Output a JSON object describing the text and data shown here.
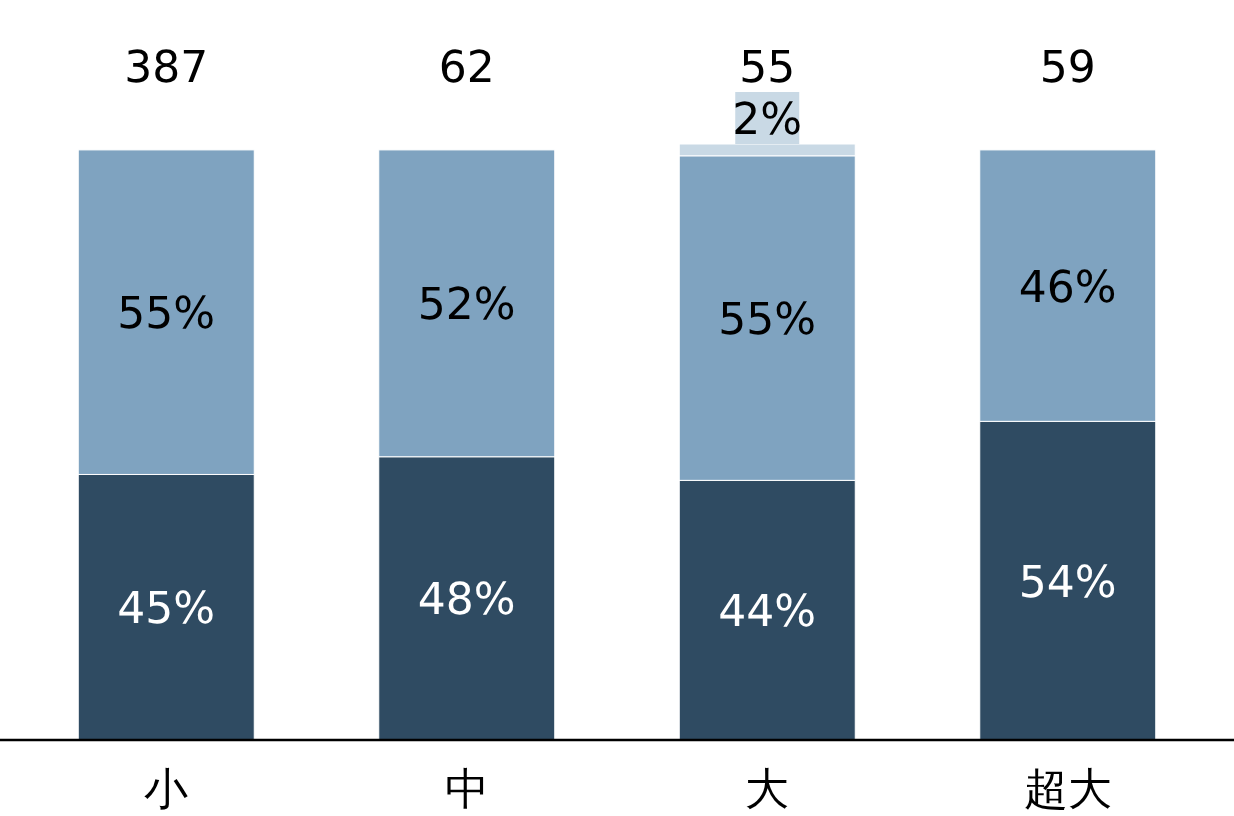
{
  "chart_data": {
    "type": "bar",
    "stacked": true,
    "categories": [
      "小",
      "中",
      "大",
      "超大"
    ],
    "series": [
      {
        "color": "#2f4b62",
        "values": [
          45,
          48,
          44,
          54
        ],
        "value_labels": [
          "45%",
          "48%",
          "44%",
          "54%"
        ]
      },
      {
        "color": "#7fa3c0",
        "values": [
          55,
          52,
          55,
          46
        ],
        "value_labels": [
          "55%",
          "52%",
          "55%",
          "46%"
        ]
      },
      {
        "color": "#c9d9e5",
        "values": [
          null,
          null,
          2,
          null
        ],
        "value_labels": [
          null,
          null,
          "2%",
          null
        ]
      }
    ],
    "annotations": [
      {
        "text": "387",
        "x": "小",
        "y": 100
      },
      {
        "text": "62",
        "x": "中",
        "y": 100
      },
      {
        "text": "55",
        "x": "大",
        "y": 100
      },
      {
        "text": "59",
        "x": "超大",
        "y": 100
      }
    ],
    "grid": false
  }
}
